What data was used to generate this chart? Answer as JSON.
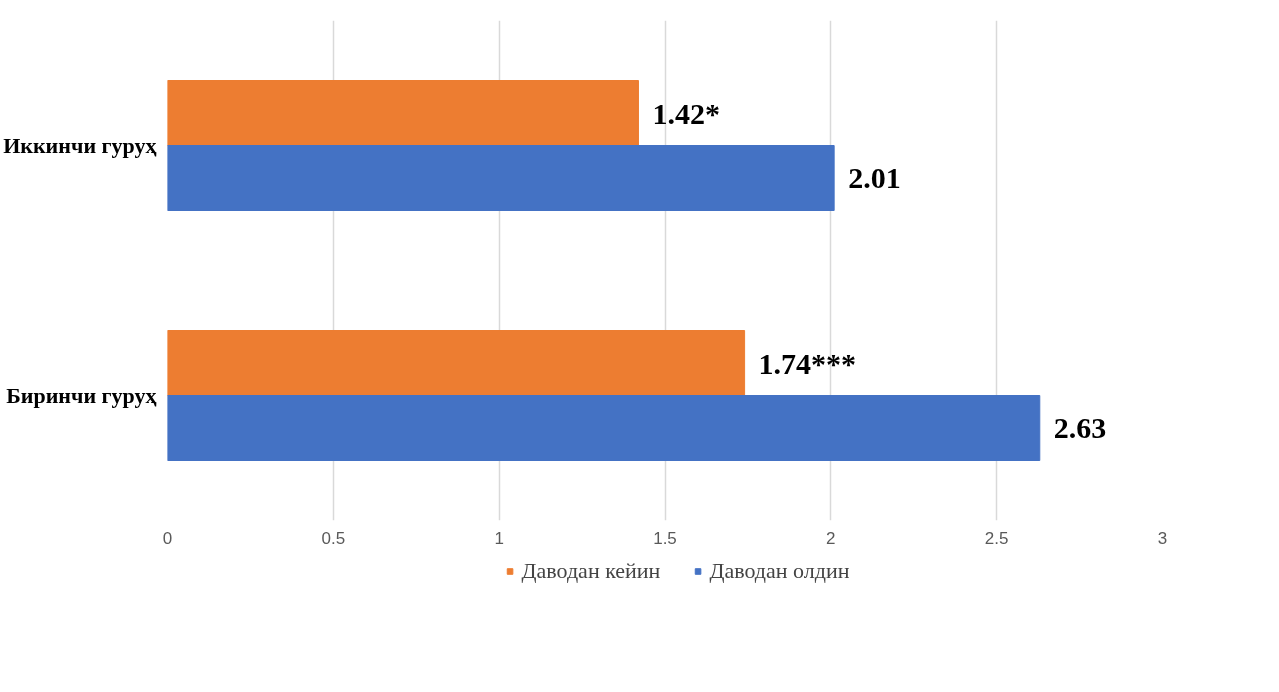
{
  "chart_data": {
    "type": "bar",
    "orientation": "horizontal",
    "categories": [
      "Иккинчи гуруҳ",
      "Биринчи гуруҳ"
    ],
    "series": [
      {
        "name": "Даводан кейин",
        "color": "#ed7d31",
        "values": [
          1.42,
          1.74
        ],
        "value_labels": [
          "1.42*",
          "1.74***"
        ]
      },
      {
        "name": "Даводан олдин",
        "color": "#4472c4",
        "values": [
          2.01,
          2.63
        ],
        "value_labels": [
          "2.01",
          "2.63"
        ]
      }
    ],
    "xlim": [
      0,
      3
    ],
    "xticks": [
      0,
      0.5,
      1,
      1.5,
      2,
      2.5,
      3
    ],
    "grid": "x",
    "legend": "bottom"
  }
}
